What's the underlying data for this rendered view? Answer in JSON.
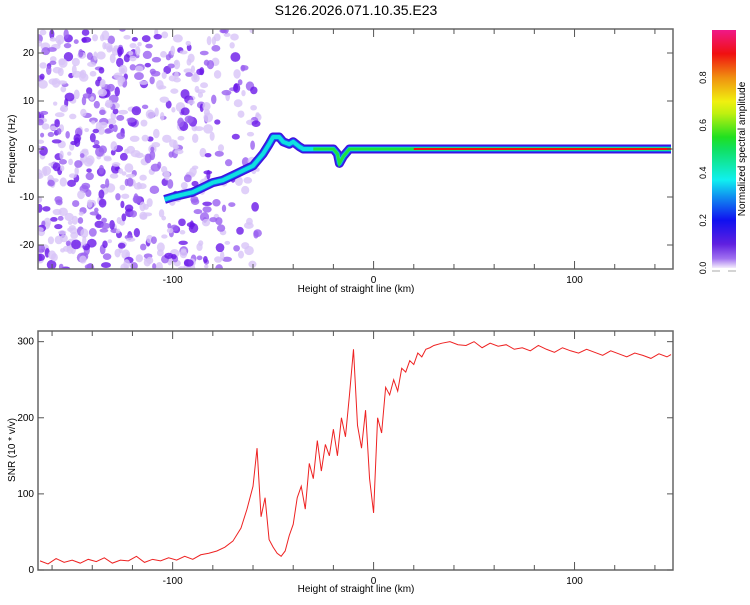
{
  "title": "S126.2026.071.10.35.E23",
  "chart_data": [
    {
      "type": "heatmap",
      "xlabel": "Height of straight line (km)",
      "ylabel": "Frequency (Hz)",
      "xlim": [
        -167,
        149
      ],
      "ylim": [
        -25,
        25
      ],
      "xticks": [
        -100,
        0,
        100
      ],
      "yticks": [
        -20,
        -10,
        0,
        10,
        20
      ],
      "colorbar": {
        "label": "Normalized spectral amplitude",
        "range": [
          0,
          1
        ],
        "ticks": [
          "0.0",
          "0.2",
          "0.4",
          "0.6",
          "0.8"
        ]
      },
      "ridge": {
        "x": [
          -104,
          -100,
          -95,
          -90,
          -85,
          -80,
          -75,
          -70,
          -65,
          -60,
          -57,
          -55,
          -52,
          -50,
          -47,
          -45,
          -42,
          -40,
          -37,
          -35,
          -30,
          -25,
          -20,
          -18,
          -17,
          -15,
          -12,
          -10,
          -5,
          0,
          10,
          20,
          50,
          100,
          148
        ],
        "y": [
          -10.5,
          -10,
          -9.5,
          -9,
          -8,
          -7,
          -6.5,
          -5.5,
          -4.5,
          -3.5,
          -2,
          -1,
          1,
          2.5,
          2.5,
          1.5,
          1,
          1.5,
          0.5,
          0,
          0,
          0,
          0,
          -1,
          -3,
          -1.5,
          0,
          0,
          0,
          0,
          0,
          0,
          0,
          0,
          0
        ]
      }
    },
    {
      "type": "line",
      "xlabel": "Height of straight line (km)",
      "ylabel": "SNR (10 * v/v)",
      "xlim": [
        -167,
        149
      ],
      "ylim": [
        0,
        314
      ],
      "xticks": [
        -100,
        0,
        100
      ],
      "yticks": [
        0,
        100,
        200,
        300
      ],
      "color": "#ee2222",
      "x": [
        -166,
        -162,
        -158,
        -154,
        -150,
        -146,
        -142,
        -138,
        -134,
        -130,
        -126,
        -122,
        -118,
        -114,
        -110,
        -106,
        -102,
        -98,
        -94,
        -90,
        -86,
        -82,
        -78,
        -74,
        -70,
        -66,
        -63,
        -60,
        -58,
        -56,
        -54,
        -52,
        -50,
        -48,
        -46,
        -44,
        -42,
        -40,
        -38,
        -36,
        -34,
        -32,
        -30,
        -28,
        -26,
        -24,
        -22,
        -20,
        -18,
        -16,
        -14,
        -12,
        -10,
        -8,
        -6,
        -4,
        -2,
        0,
        2,
        4,
        6,
        8,
        10,
        12,
        14,
        16,
        18,
        20,
        22,
        24,
        26,
        28,
        30,
        34,
        38,
        42,
        46,
        50,
        54,
        58,
        62,
        66,
        70,
        74,
        78,
        82,
        86,
        90,
        94,
        98,
        102,
        106,
        110,
        114,
        118,
        122,
        126,
        130,
        134,
        138,
        142,
        146,
        148
      ],
      "y": [
        12,
        8,
        15,
        10,
        13,
        9,
        14,
        11,
        16,
        9,
        13,
        12,
        18,
        10,
        14,
        12,
        16,
        13,
        18,
        14,
        20,
        22,
        25,
        30,
        38,
        55,
        80,
        110,
        160,
        70,
        95,
        40,
        30,
        22,
        18,
        25,
        45,
        60,
        95,
        110,
        80,
        140,
        120,
        170,
        130,
        165,
        150,
        185,
        150,
        200,
        175,
        230,
        290,
        190,
        160,
        210,
        120,
        75,
        200,
        180,
        240,
        230,
        250,
        235,
        265,
        260,
        275,
        270,
        285,
        280,
        290,
        292,
        295,
        298,
        300,
        296,
        295,
        300,
        292,
        298,
        294,
        296,
        290,
        292,
        288,
        295,
        290,
        286,
        292,
        288,
        285,
        290,
        286,
        282,
        288,
        284,
        280,
        285,
        282,
        278,
        284,
        280,
        283
      ]
    }
  ]
}
